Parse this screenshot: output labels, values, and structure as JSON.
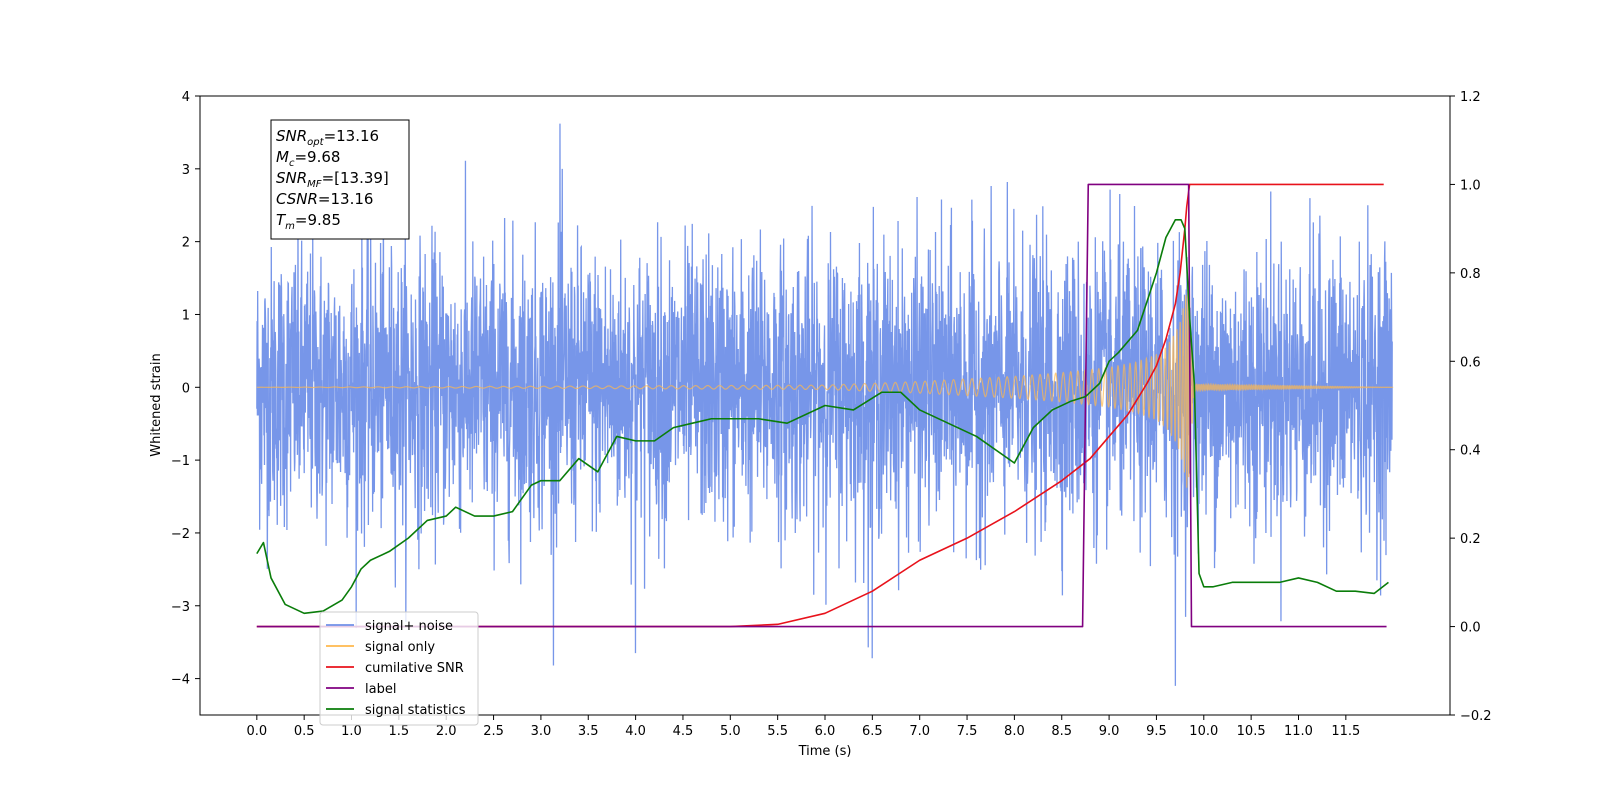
{
  "chart_data": {
    "type": "line",
    "xlabel": "Time (s)",
    "ylabel": "Whitened strain",
    "ylabel_right": "",
    "xlim": [
      -0.6,
      12.6
    ],
    "ylim": [
      -4.5,
      4.0
    ],
    "ylim_right": [
      -0.2,
      1.2
    ],
    "x_ticks": [
      "0.0",
      "0.5",
      "1.0",
      "1.5",
      "2.0",
      "2.5",
      "3.0",
      "3.5",
      "4.0",
      "4.5",
      "5.0",
      "5.5",
      "6.0",
      "6.5",
      "7.0",
      "7.5",
      "8.0",
      "8.5",
      "9.0",
      "9.5",
      "10.0",
      "10.5",
      "11.0",
      "11.5"
    ],
    "y_ticks": [
      "−4",
      "−3",
      "−2",
      "−1",
      "0",
      "1",
      "2",
      "3",
      "4"
    ],
    "y_ticks_right": [
      "−0.2",
      "0.0",
      "0.2",
      "0.4",
      "0.6",
      "0.8",
      "1.0",
      "1.2"
    ],
    "grid": false,
    "legend_position": "lower-left",
    "annotation": {
      "lines": [
        {
          "main": "SNR",
          "sub": "opt",
          "value": "=13.16"
        },
        {
          "main": "M",
          "sub": "c",
          "value": "=9.68"
        },
        {
          "main": "SNR",
          "sub": "MF",
          "value": "=[13.39]"
        },
        {
          "main": "CSNR",
          "sub": "",
          "value": "=13.16"
        },
        {
          "main": "T",
          "sub": "m",
          "value": "=9.85"
        }
      ]
    },
    "series": [
      {
        "name": "signal+ noise",
        "color": "#7090e8",
        "axis": "left",
        "x_range": [
          0.0,
          11.99
        ],
        "approx_envelope": {
          "typical_sigma": 0.95,
          "max": 3.62,
          "min": -4.1,
          "note_peaks": [
            [
              3.2,
              3.62
            ],
            [
              9.7,
              -4.1
            ],
            [
              4.0,
              -3.65
            ],
            [
              6.5,
              -3.72
            ]
          ]
        }
      },
      {
        "name": "signal only",
        "color": "#ffb84d",
        "axis": "left",
        "x": [
          0.0,
          6.0,
          7.0,
          8.0,
          8.5,
          9.0,
          9.3,
          9.5,
          9.6,
          9.7,
          9.75,
          9.8,
          9.83,
          9.85,
          9.9,
          12.0
        ],
        "amplitude": [
          0.0,
          0.03,
          0.08,
          0.15,
          0.2,
          0.27,
          0.35,
          0.45,
          0.55,
          0.75,
          0.9,
          1.2,
          1.5,
          1.1,
          0.04,
          0.0
        ]
      },
      {
        "name": "cumilative SNR",
        "color": "#e8121b",
        "axis": "right",
        "x": [
          0.0,
          5.0,
          5.5,
          6.0,
          6.5,
          7.0,
          7.5,
          8.0,
          8.5,
          8.8,
          9.0,
          9.2,
          9.4,
          9.5,
          9.6,
          9.7,
          9.75,
          9.8,
          9.82,
          9.85,
          11.9
        ],
        "y": [
          0.0,
          0.0,
          0.005,
          0.03,
          0.08,
          0.15,
          0.2,
          0.26,
          0.33,
          0.38,
          0.43,
          0.48,
          0.55,
          0.59,
          0.65,
          0.73,
          0.8,
          0.9,
          0.95,
          1.0,
          1.0
        ]
      },
      {
        "name": "label",
        "color": "#800080",
        "axis": "right",
        "x": [
          0.0,
          8.72,
          8.78,
          9.84,
          9.87,
          11.93
        ],
        "y": [
          0.0,
          0.0,
          1.0,
          1.0,
          0.0,
          0.0
        ]
      },
      {
        "name": "signal statistics",
        "color": "#0a7d0a",
        "axis": "right",
        "x": [
          0.0,
          0.07,
          0.15,
          0.3,
          0.5,
          0.7,
          0.9,
          1.0,
          1.1,
          1.2,
          1.4,
          1.6,
          1.8,
          2.0,
          2.1,
          2.3,
          2.5,
          2.7,
          2.9,
          3.0,
          3.2,
          3.4,
          3.6,
          3.8,
          4.0,
          4.2,
          4.4,
          4.6,
          4.8,
          5.0,
          5.3,
          5.6,
          6.0,
          6.3,
          6.6,
          6.8,
          7.0,
          7.3,
          7.6,
          8.0,
          8.2,
          8.4,
          8.6,
          8.75,
          8.9,
          9.0,
          9.1,
          9.3,
          9.5,
          9.6,
          9.7,
          9.76,
          9.8,
          9.85,
          9.9,
          9.95,
          10.0,
          10.1,
          10.3,
          10.6,
          10.8,
          11.0,
          11.2,
          11.4,
          11.6,
          11.8,
          11.95
        ],
        "y": [
          0.165,
          0.19,
          0.11,
          0.05,
          0.03,
          0.035,
          0.06,
          0.09,
          0.13,
          0.15,
          0.17,
          0.2,
          0.24,
          0.25,
          0.27,
          0.25,
          0.25,
          0.26,
          0.32,
          0.33,
          0.33,
          0.38,
          0.35,
          0.43,
          0.42,
          0.42,
          0.45,
          0.46,
          0.47,
          0.47,
          0.47,
          0.46,
          0.5,
          0.49,
          0.53,
          0.53,
          0.49,
          0.46,
          0.43,
          0.37,
          0.45,
          0.49,
          0.51,
          0.52,
          0.55,
          0.6,
          0.62,
          0.67,
          0.8,
          0.88,
          0.92,
          0.92,
          0.9,
          0.7,
          0.55,
          0.12,
          0.09,
          0.09,
          0.1,
          0.1,
          0.1,
          0.11,
          0.1,
          0.08,
          0.08,
          0.075,
          0.1
        ]
      }
    ]
  }
}
